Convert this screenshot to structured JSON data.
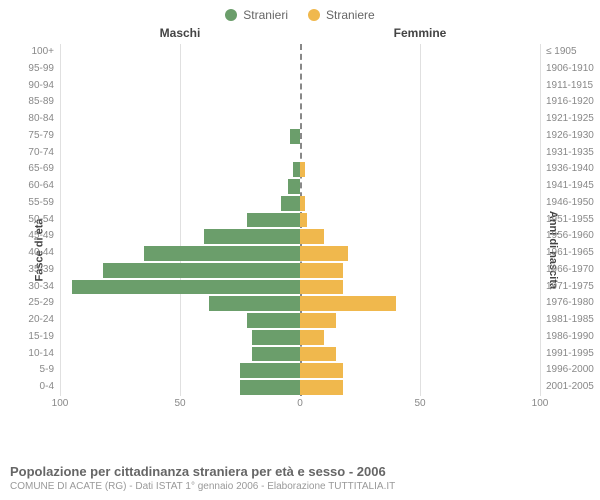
{
  "legend": {
    "male": "Stranieri",
    "female": "Straniere"
  },
  "colors": {
    "male": "#6b9e6b",
    "female": "#f0b84d",
    "grid": "#e0e0e0",
    "axis_center": "#888888",
    "background": "#ffffff",
    "text": "#666666"
  },
  "columns": {
    "left": "Maschi",
    "right": "Femmine"
  },
  "axis_titles": {
    "left": "Fasce di età",
    "right": "Anni di nascita"
  },
  "chart": {
    "type": "population-pyramid",
    "x_max": 100,
    "x_ticks": [
      100,
      50,
      0,
      50,
      100
    ],
    "age_labels": [
      "100+",
      "95-99",
      "90-94",
      "85-89",
      "80-84",
      "75-79",
      "70-74",
      "65-69",
      "60-64",
      "55-59",
      "50-54",
      "45-49",
      "40-44",
      "35-39",
      "30-34",
      "25-29",
      "20-24",
      "15-19",
      "10-14",
      "5-9",
      "0-4"
    ],
    "birth_labels": [
      "≤ 1905",
      "1906-1910",
      "1911-1915",
      "1916-1920",
      "1921-1925",
      "1926-1930",
      "1931-1935",
      "1936-1940",
      "1941-1945",
      "1946-1950",
      "1951-1955",
      "1956-1960",
      "1961-1965",
      "1966-1970",
      "1971-1975",
      "1976-1980",
      "1981-1985",
      "1986-1990",
      "1991-1995",
      "1996-2000",
      "2001-2005"
    ],
    "male_values": [
      0,
      0,
      0,
      0,
      0,
      4,
      0,
      3,
      5,
      8,
      22,
      40,
      65,
      82,
      95,
      38,
      22,
      20,
      20,
      25,
      25
    ],
    "female_values": [
      0,
      0,
      0,
      0,
      0,
      0,
      0,
      2,
      0,
      2,
      3,
      10,
      20,
      18,
      18,
      40,
      15,
      10,
      15,
      18,
      18
    ]
  },
  "footer": {
    "title": "Popolazione per cittadinanza straniera per età e sesso - 2006",
    "subtitle": "COMUNE DI ACATE (RG) - Dati ISTAT 1° gennaio 2006 - Elaborazione TUTTITALIA.IT"
  }
}
